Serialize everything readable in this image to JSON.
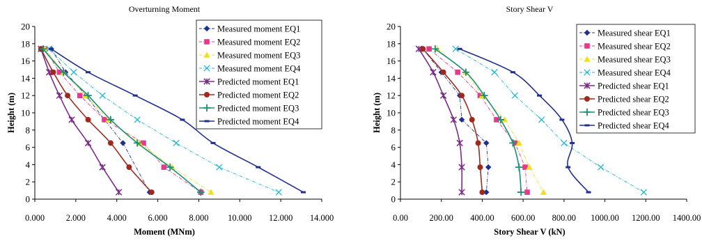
{
  "chart_data": [
    {
      "type": "line",
      "title": "Overturning Moment",
      "xlabel": "Moment (MNm)",
      "ylabel": "Height (m)",
      "xlim": [
        0,
        14
      ],
      "ylim": [
        0,
        20
      ],
      "xticks": [
        "0.000",
        "2.000",
        "4.000",
        "6.000",
        "8.000",
        "10.000",
        "12.000",
        "14.000"
      ],
      "yticks": [
        "0",
        "2",
        "4",
        "6",
        "8",
        "10",
        "12",
        "14",
        "16",
        "18",
        "20"
      ],
      "legend_position": "top-right",
      "series": [
        {
          "name": "Measured moment EQ1",
          "color": "#1f2f8f",
          "marker": "diamond",
          "style": "dashdot",
          "x": [
            0.8,
            1.5,
            2.5,
            3.4,
            4.3,
            5.6
          ],
          "y": [
            17.4,
            14.7,
            12.0,
            9.2,
            6.5,
            0.8
          ]
        },
        {
          "name": "Measured moment EQ2",
          "color": "#e8388a",
          "marker": "square",
          "style": "dashdot",
          "x": [
            0.5,
            1.2,
            2.2,
            3.4,
            5.3,
            6.3,
            8.1
          ],
          "y": [
            17.4,
            14.7,
            12.0,
            9.2,
            6.5,
            3.7,
            0.8
          ]
        },
        {
          "name": "Measured moment EQ3",
          "color": "#f0e020",
          "marker": "triangle",
          "style": "dashdot",
          "x": [
            0.5,
            1.4,
            2.5,
            3.6,
            5.1,
            6.7,
            8.6
          ],
          "y": [
            17.4,
            14.7,
            12.0,
            9.2,
            6.5,
            3.7,
            0.8
          ]
        },
        {
          "name": "Measured moment EQ4",
          "color": "#20b8d8",
          "marker": "x",
          "style": "dashdot",
          "x": [
            0.7,
            1.9,
            3.3,
            5.0,
            6.9,
            9.0,
            11.9
          ],
          "y": [
            17.4,
            14.7,
            12.0,
            9.2,
            6.5,
            3.7,
            0.8
          ]
        },
        {
          "name": "Predicted moment EQ1",
          "color": "#7a2a86",
          "marker": "star",
          "style": "solid",
          "x": [
            0.3,
            0.7,
            1.2,
            1.8,
            2.6,
            3.3,
            4.1
          ],
          "y": [
            17.4,
            14.7,
            12.0,
            9.2,
            6.5,
            3.7,
            0.8
          ]
        },
        {
          "name": "Predicted moment EQ2",
          "color": "#9e2a1e",
          "marker": "circle",
          "style": "solid",
          "x": [
            0.3,
            0.9,
            1.6,
            2.6,
            3.7,
            4.6,
            5.7
          ],
          "y": [
            17.4,
            14.7,
            12.0,
            9.2,
            6.5,
            3.7,
            0.8
          ]
        },
        {
          "name": "Predicted moment EQ3",
          "color": "#1a8f7a",
          "marker": "plus",
          "style": "solid",
          "x": [
            0.4,
            1.4,
            2.6,
            3.7,
            5.0,
            6.6,
            8.1
          ],
          "y": [
            17.4,
            14.7,
            12.0,
            9.2,
            6.5,
            3.7,
            0.8
          ]
        },
        {
          "name": "Predicted moment EQ4",
          "color": "#1f2f8f",
          "marker": "dash",
          "style": "solid",
          "x": [
            0.8,
            2.6,
            4.9,
            7.2,
            8.7,
            10.9,
            13.1
          ],
          "y": [
            17.4,
            14.7,
            12.0,
            9.2,
            6.5,
            3.7,
            0.8
          ]
        }
      ]
    },
    {
      "type": "line",
      "title": "Story Shear V",
      "xlabel": "Story Shear V (kN)",
      "ylabel": "Height (m)",
      "xlim": [
        0,
        1400
      ],
      "ylim": [
        0,
        20
      ],
      "xticks": [
        "0.00",
        "200.00",
        "400.00",
        "600.00",
        "800.00",
        "1000.00",
        "1200.00",
        "1400.00"
      ],
      "yticks": [
        "0",
        "2",
        "4",
        "6",
        "8",
        "10",
        "12",
        "14",
        "16",
        "18",
        "20"
      ],
      "legend_position": "top-right",
      "series": [
        {
          "name": "Measured shear EQ1",
          "color": "#1f2f8f",
          "marker": "diamond",
          "style": "dashdot",
          "x": [
            110,
            200,
            290,
            300,
            420,
            430,
            420
          ],
          "y": [
            17.4,
            14.7,
            12.0,
            9.2,
            6.5,
            3.7,
            0.8
          ]
        },
        {
          "name": "Measured shear EQ2",
          "color": "#e8388a",
          "marker": "square",
          "style": "dashdot",
          "x": [
            140,
            280,
            390,
            470,
            560,
            610,
            620
          ],
          "y": [
            17.4,
            14.7,
            12.0,
            9.2,
            6.5,
            3.7,
            0.8
          ]
        },
        {
          "name": "Measured shear EQ3",
          "color": "#f0e020",
          "marker": "triangle",
          "style": "dashdot",
          "x": [
            180,
            320,
            400,
            510,
            580,
            630,
            700
          ],
          "y": [
            17.4,
            14.7,
            12.0,
            9.2,
            6.5,
            3.7,
            0.8
          ]
        },
        {
          "name": "Measured shear EQ4",
          "color": "#20b8d8",
          "marker": "x",
          "style": "dashdot",
          "x": [
            270,
            460,
            560,
            690,
            800,
            980,
            1190
          ],
          "y": [
            17.4,
            14.7,
            12.0,
            9.2,
            6.5,
            3.7,
            0.8
          ]
        },
        {
          "name": "Predicted shear EQ1",
          "color": "#7a2a86",
          "marker": "star",
          "style": "solid",
          "x": [
            90,
            160,
            210,
            260,
            290,
            300,
            300
          ],
          "y": [
            17.4,
            14.7,
            12.0,
            9.2,
            6.5,
            3.7,
            0.8
          ]
        },
        {
          "name": "Predicted shear EQ2",
          "color": "#9e2a1e",
          "marker": "circle",
          "style": "solid",
          "x": [
            110,
            210,
            300,
            350,
            380,
            390,
            400
          ],
          "y": [
            17.4,
            14.7,
            12.0,
            9.2,
            6.5,
            3.7,
            0.8
          ]
        },
        {
          "name": "Predicted shear EQ3",
          "color": "#1a8f7a",
          "marker": "plus",
          "style": "solid",
          "x": [
            170,
            320,
            410,
            490,
            550,
            580,
            590
          ],
          "y": [
            17.4,
            14.7,
            12.0,
            9.2,
            6.5,
            3.7,
            0.8
          ]
        },
        {
          "name": "Predicted shear EQ4",
          "color": "#1f2f8f",
          "marker": "dash",
          "style": "solid",
          "x": [
            290,
            550,
            680,
            790,
            840,
            820,
            920
          ],
          "y": [
            17.4,
            14.7,
            12.0,
            9.2,
            6.5,
            3.7,
            0.8
          ]
        }
      ]
    }
  ]
}
